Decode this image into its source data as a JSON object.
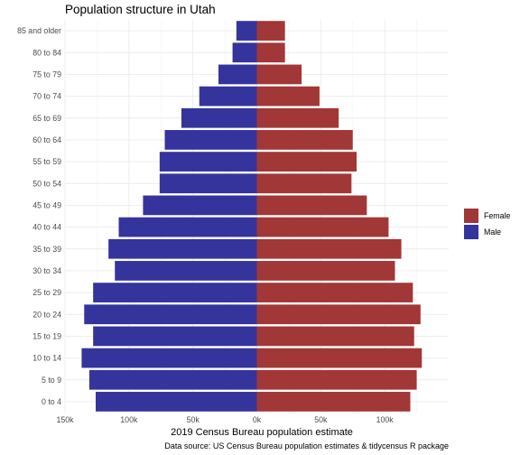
{
  "chart_data": {
    "type": "bar",
    "orientation": "horizontal",
    "title": "Population structure in Utah",
    "xlabel": "2019 Census Bureau population estimate",
    "ylabel": "",
    "caption": "Data source: US Census Bureau population estimates & tidycensus R package",
    "xlim": [
      -150000,
      150000
    ],
    "x_ticks": [
      -150000,
      -100000,
      -50000,
      0,
      50000,
      100000
    ],
    "x_tick_labels": [
      "150k",
      "100k",
      "50k",
      "0k",
      "50k",
      "100k"
    ],
    "categories": [
      "0 to 4",
      "5 to 9",
      "10 to 14",
      "15 to 19",
      "20 to 24",
      "25 to 29",
      "30 to 34",
      "35 to 39",
      "40 to 44",
      "45 to 49",
      "50 to 54",
      "55 to 59",
      "60 to 64",
      "65 to 69",
      "70 to 74",
      "75 to 79",
      "80 to 84",
      "85 and older"
    ],
    "series": [
      {
        "name": "Female",
        "color": "#a13737",
        "values": [
          120000,
          125000,
          129000,
          123000,
          128000,
          122000,
          108000,
          113000,
          103000,
          86000,
          74000,
          78000,
          75000,
          64000,
          49000,
          35000,
          22000,
          22000
        ]
      },
      {
        "name": "Male",
        "color": "#35349c",
        "values": [
          -126000,
          -131000,
          -137000,
          -128000,
          -135000,
          -128000,
          -111000,
          -116000,
          -108000,
          -89000,
          -76000,
          -76000,
          -72000,
          -59000,
          -45000,
          -30000,
          -19000,
          -16000
        ]
      }
    ],
    "legend_position": "right",
    "grid": true
  }
}
